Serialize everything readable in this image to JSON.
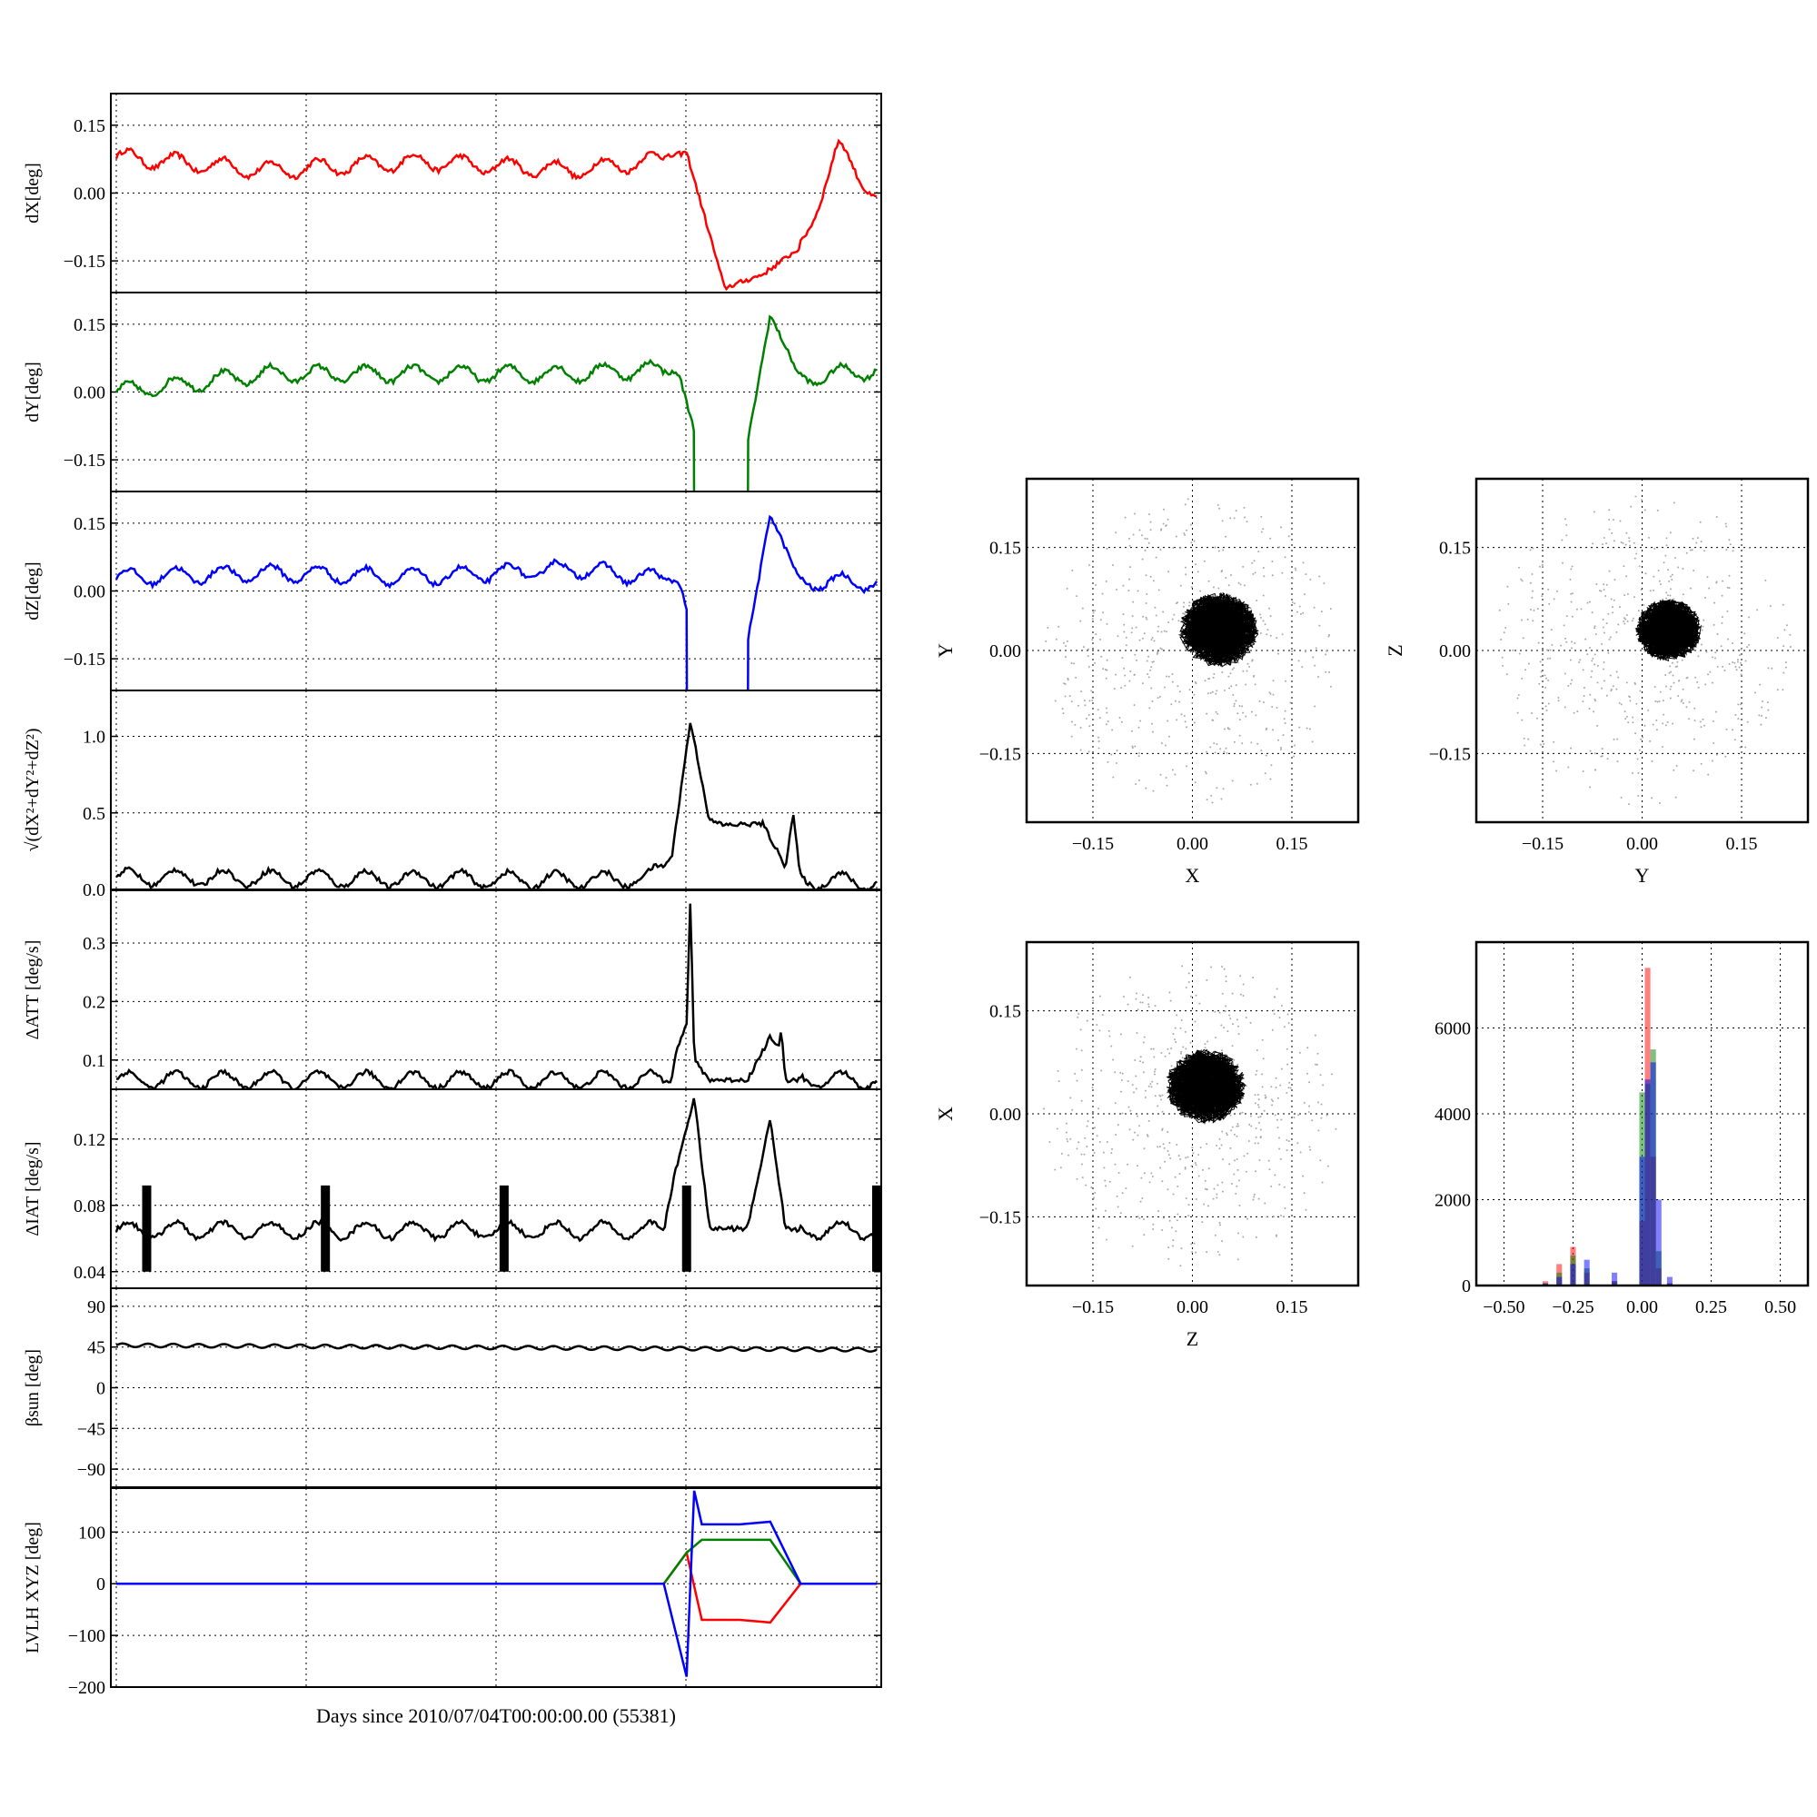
{
  "colors": {
    "red": "#ff0000",
    "green": "#008000",
    "blue": "#0000ff",
    "black": "#000000",
    "grid": "#000000"
  },
  "figure": {
    "x_axis_label": "Days since 2010/07/04T00:00:00.00 (55381)"
  },
  "chart_data": [
    {
      "id": "dx",
      "type": "line",
      "ylabel": "dX[deg]",
      "color": "red",
      "ylim": [
        -0.22,
        0.22
      ],
      "yticks": [
        -0.15,
        0.0,
        0.15
      ],
      "ytick_labels": [
        "−0.15",
        "0.00",
        "0.15"
      ],
      "grid": true,
      "x": [
        0.0,
        0.2,
        0.4,
        0.6,
        0.7,
        0.75,
        0.8,
        0.85,
        0.9,
        0.95,
        1.0
      ],
      "y": [
        0.08,
        0.05,
        0.07,
        0.05,
        0.07,
        0.09,
        -0.21,
        -0.18,
        -0.12,
        0.1,
        -0.01
      ]
    },
    {
      "id": "dy",
      "type": "line",
      "ylabel": "dY[deg]",
      "color": "green",
      "ylim": [
        -0.22,
        0.22
      ],
      "yticks": [
        -0.15,
        0.0,
        0.15
      ],
      "ytick_labels": [
        "−0.15",
        "0.00",
        "0.15"
      ],
      "grid": true,
      "x": [
        0.0,
        0.2,
        0.4,
        0.6,
        0.7,
        0.74,
        0.78,
        0.82,
        0.86,
        0.9,
        1.0
      ],
      "y": [
        0.0,
        0.04,
        0.04,
        0.04,
        0.05,
        0.04,
        -0.21,
        -0.21,
        0.17,
        0.03,
        0.05
      ],
      "gap": [
        0.76,
        0.83
      ]
    },
    {
      "id": "dz",
      "type": "line",
      "ylabel": "dZ[deg]",
      "color": "blue",
      "ylim": [
        -0.22,
        0.22
      ],
      "yticks": [
        -0.15,
        0.0,
        0.15
      ],
      "ytick_labels": [
        "−0.15",
        "0.00",
        "0.15"
      ],
      "grid": true,
      "x": [
        0.0,
        0.2,
        0.4,
        0.6,
        0.7,
        0.74,
        0.78,
        0.82,
        0.86,
        0.9,
        1.0
      ],
      "y": [
        0.03,
        0.04,
        0.03,
        0.05,
        0.03,
        0.02,
        -0.21,
        -0.21,
        0.17,
        0.02,
        0.02
      ],
      "gap": [
        0.75,
        0.83
      ]
    },
    {
      "id": "dr",
      "type": "line",
      "ylabel": "√(dX²+dY²+dZ²)",
      "color": "black",
      "ylim": [
        0.0,
        1.3
      ],
      "yticks": [
        0.0,
        0.5,
        1.0
      ],
      "ytick_labels": [
        "0.0",
        "0.5",
        "1.0"
      ],
      "grid": true,
      "x": [
        0.0,
        0.3,
        0.6,
        0.7,
        0.73,
        0.755,
        0.78,
        0.8,
        0.85,
        0.88,
        0.89,
        0.9,
        1.0
      ],
      "y": [
        0.08,
        0.07,
        0.06,
        0.07,
        0.2,
        1.1,
        0.45,
        0.42,
        0.43,
        0.15,
        0.5,
        0.06,
        0.05
      ]
    },
    {
      "id": "datt",
      "type": "line",
      "ylabel": "ΔATT [deg/s]",
      "color": "black",
      "ylim": [
        0.05,
        0.39
      ],
      "yticks": [
        0.1,
        0.2,
        0.3
      ],
      "ytick_labels": [
        "0.1",
        "0.2",
        "0.3"
      ],
      "grid": true,
      "x": [
        0.0,
        0.57,
        0.58,
        0.585,
        0.6,
        0.605,
        0.62,
        0.63,
        0.66,
        0.67,
        0.68,
        0.73,
        0.735,
        0.75,
        0.755,
        0.76,
        0.78,
        0.83,
        0.86,
        0.87,
        0.875,
        0.88,
        0.9,
        1.0
      ],
      "y": [
        0.066,
        0.066,
        0.066,
        0.066,
        0.066,
        0.066,
        0.066,
        0.066,
        0.066,
        0.066,
        0.066,
        0.066,
        0.11,
        0.16,
        0.38,
        0.1,
        0.066,
        0.066,
        0.14,
        0.12,
        0.15,
        0.066,
        0.066,
        0.066
      ]
    },
    {
      "id": "diat",
      "type": "line",
      "ylabel": "ΔIAT [deg/s]",
      "color": "black",
      "ylim": [
        0.03,
        0.15
      ],
      "yticks": [
        0.04,
        0.08,
        0.12
      ],
      "ytick_labels": [
        "0.04",
        "0.08",
        "0.12"
      ],
      "grid": true,
      "x": [
        0.0,
        0.3,
        0.6,
        0.72,
        0.735,
        0.76,
        0.78,
        0.83,
        0.86,
        0.88,
        0.9,
        1.0
      ],
      "y": [
        0.065,
        0.065,
        0.065,
        0.065,
        0.1,
        0.145,
        0.066,
        0.066,
        0.132,
        0.066,
        0.065,
        0.065
      ],
      "spikes_x": [
        0.04,
        0.275,
        0.51,
        0.75,
        1.0
      ]
    },
    {
      "id": "beta",
      "type": "line",
      "ylabel": "βsun [deg]",
      "color": "black",
      "ylim": [
        -110,
        110
      ],
      "yticks": [
        -90,
        -45,
        0,
        45,
        90
      ],
      "ytick_labels": [
        "−90",
        "−45",
        "0",
        "45",
        "90"
      ],
      "grid": true,
      "x": [
        0.0,
        1.0
      ],
      "y": [
        47,
        42
      ]
    },
    {
      "id": "lvlh",
      "type": "line",
      "ylabel": "LVLH XYZ [deg]",
      "ylim": [
        -200,
        185
      ],
      "yticks": [
        -200,
        -100,
        0,
        100
      ],
      "ytick_labels": [
        "−200",
        "−100",
        "0",
        "100"
      ],
      "grid": true,
      "series": [
        {
          "color": "red",
          "x": [
            0.0,
            0.72,
            0.75,
            0.77,
            0.82,
            0.86,
            0.9,
            1.0
          ],
          "y": [
            0,
            0,
            60,
            -70,
            -70,
            -75,
            0,
            0
          ]
        },
        {
          "color": "green",
          "x": [
            0.0,
            0.72,
            0.75,
            0.77,
            0.82,
            0.86,
            0.9,
            1.0
          ],
          "y": [
            0,
            0,
            60,
            85,
            85,
            85,
            0,
            0
          ]
        },
        {
          "color": "blue",
          "x": [
            0.0,
            0.72,
            0.75,
            0.76,
            0.77,
            0.82,
            0.86,
            0.9,
            1.0
          ],
          "y": [
            0,
            0,
            -180,
            180,
            115,
            115,
            120,
            0,
            0
          ]
        }
      ]
    },
    {
      "id": "scatter_xy",
      "type": "scatter",
      "xlabel": "X",
      "ylabel": "Y",
      "xlim": [
        -0.25,
        0.25
      ],
      "ylim": [
        -0.25,
        0.25
      ],
      "xticks": [
        -0.15,
        0.0,
        0.15
      ],
      "yticks": [
        -0.15,
        0.0,
        0.15
      ],
      "tick_labels": [
        "−0.15",
        "0.00",
        "0.15"
      ],
      "grid": true,
      "cluster_center": [
        0.04,
        0.03
      ],
      "cluster_radius": 0.06
    },
    {
      "id": "scatter_yz",
      "type": "scatter",
      "xlabel": "Y",
      "ylabel": "Z",
      "xlim": [
        -0.25,
        0.25
      ],
      "ylim": [
        -0.25,
        0.25
      ],
      "xticks": [
        -0.15,
        0.0,
        0.15
      ],
      "yticks": [
        -0.15,
        0.0,
        0.15
      ],
      "tick_labels": [
        "−0.15",
        "0.00",
        "0.15"
      ],
      "grid": true,
      "cluster_center": [
        0.04,
        0.03
      ],
      "cluster_radius": 0.05
    },
    {
      "id": "scatter_zx",
      "type": "scatter",
      "xlabel": "Z",
      "ylabel": "X",
      "xlim": [
        -0.25,
        0.25
      ],
      "ylim": [
        -0.25,
        0.25
      ],
      "xticks": [
        -0.15,
        0.0,
        0.15
      ],
      "yticks": [
        -0.15,
        0.0,
        0.15
      ],
      "tick_labels": [
        "−0.15",
        "0.00",
        "0.15"
      ],
      "grid": true,
      "cluster_center": [
        0.02,
        0.04
      ],
      "cluster_radius": 0.06
    },
    {
      "id": "histogram",
      "type": "bar",
      "xlim": [
        -0.6,
        0.6
      ],
      "ylim": [
        0,
        8000
      ],
      "xticks": [
        -0.5,
        -0.25,
        0.0,
        0.25,
        0.5
      ],
      "xtick_labels": [
        "−0.50",
        "−0.25",
        "0.00",
        "0.25",
        "0.50"
      ],
      "yticks": [
        0,
        2000,
        4000,
        6000
      ],
      "ytick_labels": [
        "0",
        "2000",
        "4000",
        "6000"
      ],
      "grid": true,
      "series": [
        {
          "color": "red",
          "x": [
            -0.35,
            -0.3,
            -0.25,
            -0.2,
            -0.1,
            0.0,
            0.02,
            0.04,
            0.06,
            0.1
          ],
          "values": [
            100,
            500,
            900,
            300,
            100,
            1500,
            7400,
            3000,
            400,
            50
          ]
        },
        {
          "color": "green",
          "x": [
            -0.35,
            -0.3,
            -0.25,
            -0.2,
            -0.1,
            0.0,
            0.02,
            0.04,
            0.06,
            0.1
          ],
          "values": [
            50,
            300,
            700,
            400,
            100,
            4500,
            4700,
            5500,
            800,
            50
          ]
        },
        {
          "color": "blue",
          "x": [
            -0.35,
            -0.3,
            -0.25,
            -0.2,
            -0.1,
            0.0,
            0.02,
            0.04,
            0.06,
            0.1
          ],
          "values": [
            50,
            200,
            500,
            600,
            300,
            3000,
            4800,
            5200,
            2000,
            200
          ]
        }
      ]
    }
  ]
}
